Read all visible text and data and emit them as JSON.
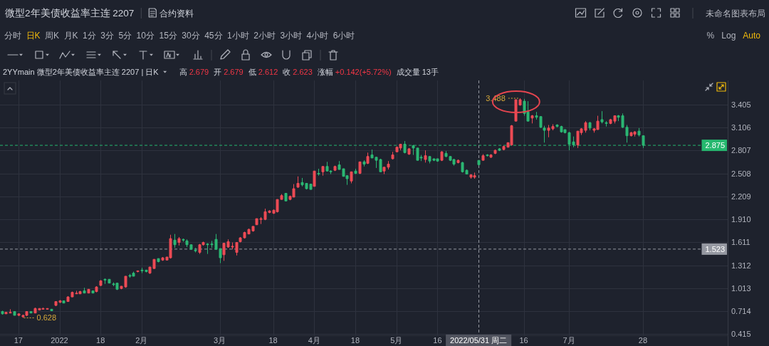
{
  "chart_data": {
    "type": "candlestick",
    "title": "微型2年美债收益率主连 2207",
    "subtitle": "2YYmain 微型2年美债收益率主连 2207 | 日K",
    "categories": [
      null,
      null,
      null,
      null,
      "17",
      null,
      null,
      null,
      null,
      null,
      null,
      null,
      null,
      null,
      "2022",
      null,
      null,
      null,
      null,
      null,
      null,
      null,
      null,
      null,
      "18",
      null,
      null,
      null,
      null,
      null,
      null,
      null,
      null,
      null,
      "2月",
      null,
      null,
      null,
      null,
      null,
      null,
      null,
      null,
      null,
      null,
      null,
      null,
      null,
      null,
      null,
      null,
      null,
      null,
      "3月",
      null,
      null,
      null,
      null,
      null,
      null,
      null,
      null,
      null,
      null,
      null,
      null,
      "18",
      null,
      null,
      null,
      null,
      null,
      null,
      null,
      null,
      null,
      "4月",
      null,
      null,
      null,
      null,
      null,
      null,
      null,
      null,
      null,
      "18",
      null,
      null,
      null,
      null,
      null,
      null,
      null,
      null,
      null,
      "5月",
      null,
      null,
      null,
      null,
      null,
      null,
      null,
      null,
      null,
      "16",
      null,
      null,
      null,
      null,
      null,
      null,
      null,
      null,
      null,
      "2022/05/31 周二",
      null,
      null,
      null,
      null,
      null,
      null,
      null,
      null,
      null,
      null,
      "16",
      null,
      null,
      null,
      null,
      null,
      null,
      null,
      null,
      null,
      null,
      "7月",
      null,
      null,
      null,
      null,
      null,
      null,
      null,
      null,
      null,
      null,
      null,
      null,
      null,
      null,
      null,
      null,
      null,
      "28",
      null,
      null,
      null,
      null,
      null,
      null,
      null,
      null,
      null,
      null,
      null,
      null,
      null,
      null,
      null,
      null,
      null,
      null,
      null,
      null
    ],
    "ohlc": [
      [
        0.71,
        0.72,
        0.67,
        0.68
      ],
      [
        0.68,
        0.7,
        0.68,
        0.7
      ],
      [
        0.69,
        0.74,
        0.69,
        0.7
      ],
      [
        0.71,
        0.71,
        0.66,
        0.66
      ],
      [
        0.66,
        0.68,
        0.65,
        0.68
      ],
      [
        0.64,
        0.67,
        0.628,
        0.66
      ],
      [
        0.66,
        0.71,
        0.65,
        0.71
      ],
      [
        0.71,
        0.71,
        0.69,
        0.69
      ],
      [
        0.69,
        0.76,
        0.69,
        0.75
      ],
      [
        0.73,
        0.75,
        0.73,
        0.75
      ],
      [
        0.74,
        0.76,
        0.74,
        0.75
      ],
      [
        0.74,
        0.75,
        0.74,
        0.75
      ],
      [
        0.74,
        0.74,
        0.72,
        0.72
      ],
      [
        0.79,
        0.84,
        0.78,
        0.84
      ],
      [
        0.83,
        0.86,
        0.82,
        0.85
      ],
      [
        0.85,
        0.85,
        0.82,
        0.82
      ],
      [
        0.84,
        0.91,
        0.84,
        0.9
      ],
      [
        0.9,
        0.97,
        0.9,
        0.96
      ],
      [
        0.94,
        0.98,
        0.94,
        0.95
      ],
      [
        0.94,
        0.98,
        0.94,
        0.97
      ],
      [
        0.98,
        1.02,
        0.95,
        0.95
      ],
      [
        0.95,
        1.0,
        0.95,
        1.0
      ],
      [
        0.98,
        0.98,
        0.95,
        0.95
      ],
      [
        0.97,
        1.04,
        0.96,
        1.03
      ],
      [
        1.05,
        1.12,
        1.04,
        1.11
      ],
      [
        1.13,
        1.14,
        1.07,
        1.12
      ],
      [
        1.13,
        1.13,
        1.08,
        1.08
      ],
      [
        1.07,
        1.09,
        1.04,
        1.06
      ],
      [
        1.08,
        1.08,
        0.99,
        1.0
      ],
      [
        1.01,
        1.04,
        1.0,
        1.04
      ],
      [
        1.03,
        1.17,
        1.02,
        1.17
      ],
      [
        1.18,
        1.2,
        1.15,
        1.17
      ],
      [
        1.21,
        1.23,
        1.17,
        1.17
      ],
      [
        1.23,
        1.24,
        1.22,
        1.24
      ],
      [
        1.25,
        1.28,
        1.21,
        1.24
      ],
      [
        1.25,
        1.25,
        1.22,
        1.23
      ],
      [
        1.21,
        1.29,
        1.2,
        1.29
      ],
      [
        1.27,
        1.39,
        1.27,
        1.39
      ],
      [
        1.4,
        1.4,
        1.35,
        1.36
      ],
      [
        1.38,
        1.42,
        1.37,
        1.41
      ],
      [
        1.38,
        1.42,
        1.38,
        1.42
      ],
      [
        1.41,
        1.71,
        1.4,
        1.66
      ],
      [
        1.64,
        1.72,
        1.54,
        1.58
      ],
      [
        1.61,
        1.68,
        1.57,
        1.66
      ],
      [
        1.65,
        1.66,
        1.62,
        1.64
      ],
      [
        1.63,
        1.65,
        1.55,
        1.58
      ],
      [
        1.58,
        1.58,
        1.52,
        1.52
      ],
      [
        1.51,
        1.54,
        1.48,
        1.5
      ],
      [
        1.48,
        1.59,
        1.46,
        1.58
      ],
      [
        1.58,
        1.62,
        1.57,
        1.61
      ],
      [
        1.59,
        1.6,
        1.46,
        1.58
      ],
      [
        1.59,
        1.63,
        1.54,
        1.58
      ],
      [
        1.65,
        1.72,
        1.52,
        1.52
      ],
      [
        1.53,
        1.53,
        1.34,
        1.41
      ],
      [
        1.45,
        1.6,
        1.37,
        1.6
      ],
      [
        1.55,
        1.65,
        1.54,
        1.62
      ],
      [
        1.55,
        1.61,
        1.52,
        1.56
      ],
      [
        1.48,
        1.61,
        1.44,
        1.61
      ],
      [
        1.62,
        1.68,
        1.61,
        1.67
      ],
      [
        1.67,
        1.75,
        1.66,
        1.74
      ],
      [
        1.72,
        1.79,
        1.72,
        1.78
      ],
      [
        1.76,
        1.82,
        1.75,
        1.82
      ],
      [
        1.84,
        1.92,
        1.84,
        1.92
      ],
      [
        1.91,
        1.94,
        1.85,
        1.92
      ],
      [
        1.91,
        2.05,
        1.9,
        2.01
      ],
      [
        2.0,
        2.03,
        1.99,
        2.02
      ],
      [
        1.99,
        2.04,
        1.98,
        2.03
      ],
      [
        2.01,
        2.17,
        2.0,
        2.17
      ],
      [
        2.17,
        2.24,
        2.17,
        2.22
      ],
      [
        2.25,
        2.25,
        2.15,
        2.15
      ],
      [
        2.17,
        2.22,
        2.16,
        2.21
      ],
      [
        2.2,
        2.37,
        2.2,
        2.31
      ],
      [
        2.33,
        2.47,
        2.32,
        2.38
      ],
      [
        2.39,
        2.45,
        2.34,
        2.36
      ],
      [
        2.38,
        2.38,
        2.3,
        2.31
      ],
      [
        2.37,
        2.37,
        2.3,
        2.3
      ],
      [
        2.34,
        2.54,
        2.34,
        2.54
      ],
      [
        2.51,
        2.57,
        2.48,
        2.5
      ],
      [
        2.53,
        2.6,
        2.48,
        2.6
      ],
      [
        2.6,
        2.66,
        2.54,
        2.54
      ],
      [
        2.54,
        2.55,
        2.5,
        2.53
      ],
      [
        2.55,
        2.61,
        2.54,
        2.6
      ],
      [
        2.62,
        2.67,
        2.56,
        2.56
      ],
      [
        2.57,
        2.57,
        2.47,
        2.47
      ],
      [
        2.48,
        2.48,
        2.36,
        2.44
      ],
      [
        2.41,
        2.53,
        2.38,
        2.53
      ],
      [
        2.54,
        2.57,
        2.5,
        2.51
      ],
      [
        2.51,
        2.66,
        2.5,
        2.66
      ],
      [
        2.66,
        2.68,
        2.6,
        2.63
      ],
      [
        2.64,
        2.78,
        2.63,
        2.73
      ],
      [
        2.75,
        2.82,
        2.71,
        2.71
      ],
      [
        2.72,
        2.72,
        2.58,
        2.68
      ],
      [
        2.69,
        2.7,
        2.53,
        2.53
      ],
      [
        2.54,
        2.59,
        2.5,
        2.59
      ],
      [
        2.59,
        2.67,
        2.56,
        2.63
      ],
      [
        2.7,
        2.79,
        2.69,
        2.75
      ],
      [
        2.79,
        2.86,
        2.79,
        2.85
      ],
      [
        2.84,
        2.89,
        2.81,
        2.89
      ],
      [
        2.89,
        2.93,
        2.77,
        2.78
      ],
      [
        2.76,
        2.84,
        2.75,
        2.83
      ],
      [
        2.87,
        2.88,
        2.75,
        2.84
      ],
      [
        2.84,
        2.84,
        2.68,
        2.68
      ],
      [
        2.72,
        2.75,
        2.67,
        2.71
      ],
      [
        2.69,
        2.81,
        2.65,
        2.74
      ],
      [
        2.73,
        2.73,
        2.64,
        2.67
      ],
      [
        2.7,
        2.7,
        2.67,
        2.68
      ],
      [
        2.7,
        2.7,
        2.66,
        2.67
      ],
      [
        2.68,
        2.8,
        2.67,
        2.79
      ],
      [
        2.77,
        2.8,
        2.72,
        2.73
      ],
      [
        2.73,
        2.73,
        2.67,
        2.68
      ],
      [
        2.69,
        2.7,
        2.61,
        2.63
      ],
      [
        2.65,
        2.69,
        2.64,
        2.68
      ],
      [
        2.65,
        2.66,
        2.52,
        2.53
      ],
      [
        2.55,
        2.56,
        2.5,
        2.5
      ],
      [
        2.46,
        2.5,
        2.44,
        2.49
      ],
      [
        2.46,
        2.52,
        2.44,
        2.48
      ],
      [
        2.679,
        2.679,
        2.612,
        2.623
      ],
      [
        2.68,
        2.76,
        2.68,
        2.74
      ],
      [
        2.75,
        2.76,
        2.73,
        2.74
      ],
      [
        2.72,
        2.76,
        2.71,
        2.75
      ],
      [
        2.77,
        2.82,
        2.76,
        2.81
      ],
      [
        2.83,
        2.84,
        2.8,
        2.81
      ],
      [
        2.82,
        2.87,
        2.81,
        2.86
      ],
      [
        2.85,
        2.91,
        2.85,
        2.91
      ],
      [
        2.88,
        3.14,
        2.87,
        3.13
      ],
      [
        3.19,
        3.47,
        3.19,
        3.47
      ],
      [
        3.4,
        3.488,
        3.39,
        3.47
      ],
      [
        3.45,
        3.48,
        3.26,
        3.29
      ],
      [
        3.31,
        3.45,
        3.19,
        3.19
      ],
      [
        3.23,
        3.27,
        3.16,
        3.26
      ],
      [
        3.26,
        3.31,
        3.21,
        3.24
      ],
      [
        3.25,
        3.25,
        3.1,
        3.11
      ],
      [
        3.1,
        3.13,
        2.91,
        3.07
      ],
      [
        3.07,
        3.14,
        2.98,
        3.1
      ],
      [
        3.09,
        3.15,
        3.07,
        3.12
      ],
      [
        3.14,
        3.15,
        3.11,
        3.12
      ],
      [
        3.12,
        3.13,
        3.04,
        3.05
      ],
      [
        3.08,
        3.08,
        3.03,
        3.04
      ],
      [
        3.04,
        3.05,
        2.81,
        2.89
      ],
      [
        2.92,
        2.99,
        2.85,
        2.88
      ],
      [
        2.88,
        3.06,
        2.84,
        3.06
      ],
      [
        3.04,
        3.1,
        3.01,
        3.09
      ],
      [
        3.07,
        3.19,
        3.04,
        3.17
      ],
      [
        3.17,
        3.18,
        3.07,
        3.1
      ],
      [
        3.07,
        3.1,
        3.04,
        3.09
      ],
      [
        3.08,
        3.26,
        3.08,
        3.19
      ],
      [
        3.21,
        3.32,
        3.16,
        3.18
      ],
      [
        3.17,
        3.19,
        3.12,
        3.16
      ],
      [
        3.16,
        3.22,
        3.15,
        3.21
      ],
      [
        3.19,
        3.26,
        3.16,
        3.26
      ],
      [
        3.26,
        3.27,
        3.19,
        3.24
      ],
      [
        3.26,
        3.29,
        3.1,
        3.11
      ],
      [
        3.11,
        3.14,
        2.91,
        3.0
      ],
      [
        3.0,
        3.05,
        2.99,
        3.04
      ],
      [
        3.02,
        3.06,
        2.99,
        3.05
      ],
      [
        3.06,
        3.1,
        2.99,
        3.01
      ],
      [
        3.0,
        3.0,
        2.84,
        2.875
      ],
      null,
      null,
      null,
      null,
      null,
      null,
      null,
      null,
      null,
      null,
      null,
      null,
      null,
      null,
      null,
      null,
      null,
      null,
      null,
      null
    ],
    "colors": [
      "#2bb673",
      "#ec4a55",
      "#ec4a55",
      "#2bb673",
      "#ec4a55",
      "#ec4a55",
      "#ec4a55",
      "#2bb673",
      "#ec4a55",
      "#ec4a55",
      "#ec4a55",
      "#ec4a55",
      "#2bb673",
      "#ec4a55",
      "#ec4a55",
      "#2bb673",
      "#ec4a55",
      "#ec4a55",
      "#ec4a55",
      "#ec4a55",
      "#2bb673",
      "#ec4a55",
      "#2bb673",
      "#ec4a55",
      "#ec4a55",
      "#2bb673",
      "#2bb673",
      "#2bb673",
      "#2bb673",
      "#ec4a55",
      "#ec4a55",
      "#2bb673",
      "#2bb673",
      "#ec4a55",
      "#2bb673",
      "#2bb673",
      "#ec4a55",
      "#ec4a55",
      "#2bb673",
      "#ec4a55",
      "#ec4a55",
      "#ec4a55",
      "#2bb673",
      "#ec4a55",
      "#2bb673",
      "#2bb673",
      "#2bb673",
      "#2bb673",
      "#ec4a55",
      "#ec4a55",
      "#2bb673",
      "#2bb673",
      "#2bb673",
      "#2bb673",
      "#ec4a55",
      "#ec4a55",
      "#ec4a55",
      "#ec4a55",
      "#ec4a55",
      "#ec4a55",
      "#ec4a55",
      "#ec4a55",
      "#ec4a55",
      "#ec4a55",
      "#ec4a55",
      "#ec4a55",
      "#ec4a55",
      "#ec4a55",
      "#ec4a55",
      "#2bb673",
      "#ec4a55",
      "#ec4a55",
      "#ec4a55",
      "#2bb673",
      "#2bb673",
      "#2bb673",
      "#ec4a55",
      "#2bb673",
      "#ec4a55",
      "#2bb673",
      "#2bb673",
      "#ec4a55",
      "#2bb673",
      "#2bb673",
      "#2bb673",
      "#ec4a55",
      "#2bb673",
      "#ec4a55",
      "#2bb673",
      "#ec4a55",
      "#2bb673",
      "#2bb673",
      "#2bb673",
      "#ec4a55",
      "#ec4a55",
      "#ec4a55",
      "#ec4a55",
      "#ec4a55",
      "#2bb673",
      "#ec4a55",
      "#2bb673",
      "#2bb673",
      "#2bb673",
      "#ec4a55",
      "#2bb673",
      "#2bb673",
      "#2bb673",
      "#ec4a55",
      "#2bb673",
      "#2bb673",
      "#2bb673",
      "#ec4a55",
      "#2bb673",
      "#2bb673",
      "#ec4a55",
      "#ec4a55",
      "#2bb673",
      "#ec4a55",
      "#2bb673",
      "#ec4a55",
      "#ec4a55",
      "#2bb673",
      "#ec4a55",
      "#ec4a55",
      "#ec4a55",
      "#ec4a55",
      "#ec4a55",
      "#2bb673",
      "#2bb673",
      "#ec4a55",
      "#2bb673",
      "#2bb673",
      "#2bb673",
      "#ec4a55",
      "#ec4a55",
      "#2bb673",
      "#2bb673",
      "#2bb673",
      "#2bb673",
      "#2bb673",
      "#ec4a55",
      "#ec4a55",
      "#ec4a55",
      "#2bb673",
      "#ec4a55",
      "#ec4a55",
      "#2bb673",
      "#2bb673",
      "#ec4a55",
      "#ec4a55",
      "#2bb673",
      "#2bb673",
      "#2bb673",
      "#ec4a55",
      "#ec4a55",
      "#2bb673",
      "#2bb673",
      null,
      null,
      null,
      null,
      null,
      null,
      null,
      null,
      null,
      null,
      null,
      null,
      null,
      null,
      null,
      null,
      null,
      null,
      null,
      null
    ],
    "ylim": [
      0.4,
      3.72
    ],
    "yticks": [
      {
        "value": 0.415,
        "label": "0.415"
      },
      {
        "value": 0.714,
        "label": "0.714"
      },
      {
        "value": 1.013,
        "label": "1.013"
      },
      {
        "value": 1.312,
        "label": "1.312"
      },
      {
        "value": 1.611,
        "label": "1.611"
      },
      {
        "value": 1.91,
        "label": "1.910"
      },
      {
        "value": 2.209,
        "label": "2.209"
      },
      {
        "value": 2.508,
        "label": "2.508"
      },
      {
        "value": 2.807,
        "label": "2.807"
      },
      {
        "value": 3.106,
        "label": "3.106"
      },
      {
        "value": 3.405,
        "label": "3.405"
      }
    ],
    "grid": true,
    "ref_lines": [
      {
        "axis": "y",
        "value": 2.875,
        "label": "2.875",
        "color": "#26b86f",
        "line_style": "dashed"
      },
      {
        "axis": "y",
        "value": 1.523,
        "label": "1.523",
        "color": "#9598a1",
        "line_style": "dashed"
      },
      {
        "axis": "x",
        "value": "2022/05/31 周二",
        "color": "#9598a1",
        "line_style": "dashed"
      }
    ],
    "annotations": [
      "合约资料",
      "未命名图表布局",
      "分时",
      "日K",
      "周K",
      "月K",
      "1分",
      "3分",
      "5分",
      "10分",
      "15分",
      "30分",
      "45分",
      "1小时",
      "2小时",
      "3小时",
      "4小时",
      "6小时",
      "%",
      "Log",
      "Auto",
      "高",
      "2.679",
      "开",
      "2.679",
      "低",
      "2.612",
      "收",
      "2.623",
      "涨幅",
      "+0.142(+5.72%)",
      "成交量",
      "13手",
      "3.488",
      "0.628"
    ]
  }
}
